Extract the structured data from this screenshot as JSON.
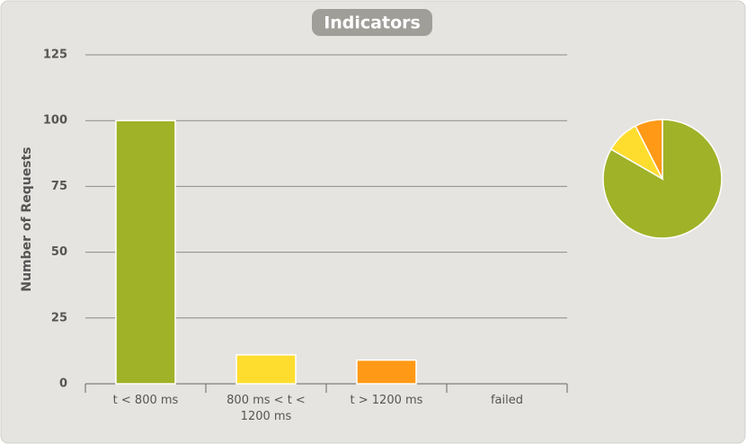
{
  "chart_data": [
    {
      "type": "bar",
      "title": "Indicators",
      "y_label": "Number of Requests",
      "categories": [
        "t < 800 ms",
        "800 ms < t < 1200 ms",
        "t > 1200 ms",
        "failed"
      ],
      "values": [
        100,
        11,
        9,
        0
      ],
      "colors": [
        "#a0b228",
        "#ffdd2f",
        "#ff9916",
        "#f15b4f"
      ],
      "ylim": [
        0,
        125
      ],
      "yticks": [
        0,
        25,
        50,
        75,
        100,
        125
      ],
      "grid": true
    },
    {
      "type": "pie",
      "values": [
        100,
        11,
        9,
        0
      ],
      "colors": [
        "#a0b228",
        "#ffdd2f",
        "#ff9916",
        "#f15b4f"
      ]
    }
  ]
}
